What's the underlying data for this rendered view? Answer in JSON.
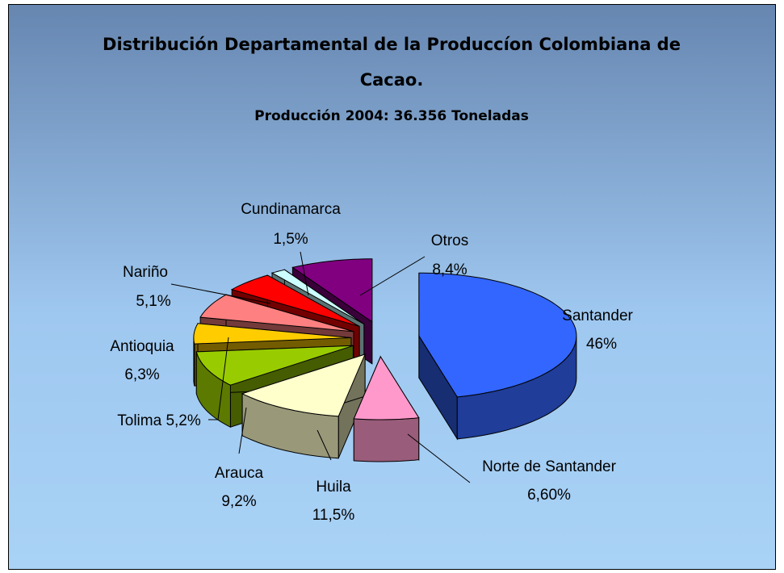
{
  "chart_data": {
    "type": "pie3d",
    "title": "Distribución Departamental de la Produccíon Colombiana de Cacao.",
    "subtitle": "Producción 2004: 36.356 Toneladas",
    "categories": [
      "Santander",
      "Norte de Santander",
      "Huila",
      "Arauca",
      "Tolima",
      "Antioquia",
      "Nariño",
      "Cundinamarca",
      "Otros"
    ],
    "values": [
      46,
      6.6,
      11.5,
      9.2,
      5.2,
      6.3,
      5.1,
      1.5,
      8.4
    ],
    "value_labels": [
      "46%",
      "6,60%",
      "11,5%",
      "9,2%",
      "5,2%",
      "6,3%",
      "5,1%",
      "1,5%",
      "8,4%"
    ],
    "colors": [
      "#3366ff",
      "#ff99cc",
      "#ffffcc",
      "#99cc00",
      "#ffcc00",
      "#ff8080",
      "#ff0000",
      "#ccffff",
      "#800080"
    ]
  }
}
